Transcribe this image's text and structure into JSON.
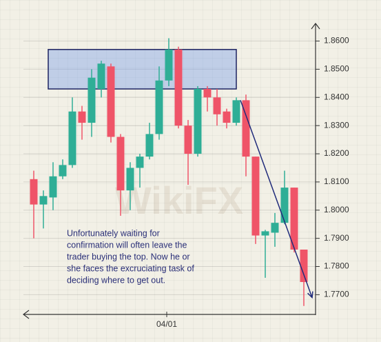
{
  "chart_data": {
    "type": "candlestick",
    "categories": [
      null,
      null,
      null,
      null,
      null,
      null,
      null,
      null,
      null,
      null,
      null,
      null,
      null,
      null,
      "04/01",
      null,
      null,
      null,
      null,
      null,
      null,
      null,
      null,
      null,
      null,
      null,
      null,
      null,
      null
    ],
    "open": [
      1.811,
      1.802,
      1.8045,
      1.812,
      1.816,
      1.835,
      1.831,
      1.843,
      1.851,
      1.826,
      1.807,
      1.815,
      1.819,
      1.827,
      1.846,
      1.857,
      1.83,
      1.82,
      1.843,
      1.84,
      1.835,
      1.831,
      1.839,
      1.819,
      1.791,
      1.792,
      1.7955,
      1.808,
      1.786
    ],
    "high": [
      1.814,
      1.807,
      1.817,
      1.818,
      1.84,
      1.837,
      1.85,
      1.853,
      1.852,
      1.827,
      1.817,
      1.82,
      1.831,
      1.851,
      1.861,
      1.858,
      1.832,
      1.844,
      1.844,
      1.843,
      1.836,
      1.84,
      1.841,
      1.819,
      1.793,
      1.799,
      1.814,
      1.808,
      1.786
    ],
    "low": [
      1.79,
      1.7935,
      1.8,
      1.811,
      1.815,
      1.825,
      1.826,
      1.84,
      1.824,
      1.798,
      1.8,
      1.808,
      1.818,
      1.825,
      1.844,
      1.829,
      1.809,
      1.819,
      1.835,
      1.83,
      1.829,
      1.83,
      1.812,
      1.788,
      1.776,
      1.787,
      1.795,
      1.785,
      1.766
    ],
    "close": [
      1.802,
      1.805,
      1.812,
      1.816,
      1.835,
      1.831,
      1.847,
      1.852,
      1.826,
      1.807,
      1.815,
      1.819,
      1.827,
      1.846,
      1.857,
      1.83,
      1.82,
      1.843,
      1.84,
      1.834,
      1.831,
      1.839,
      1.819,
      1.791,
      1.7925,
      1.7955,
      1.808,
      1.786,
      1.7745
    ],
    "up_color": "#2fae96",
    "down_color": "#ef5468",
    "ylim": [
      1.763,
      1.866
    ],
    "yticks": [
      {
        "value": 1.86,
        "label": "1.8600"
      },
      {
        "value": 1.85,
        "label": "1.8500"
      },
      {
        "value": 1.84,
        "label": "1.8400"
      },
      {
        "value": 1.83,
        "label": "1.8300"
      },
      {
        "value": 1.82,
        "label": "1.8200"
      },
      {
        "value": 1.81,
        "label": "1.8100"
      },
      {
        "value": 1.8,
        "label": "1.8000"
      },
      {
        "value": 1.79,
        "label": "1.7900"
      },
      {
        "value": 1.78,
        "label": "1.7800"
      },
      {
        "value": 1.77,
        "label": "1.7700"
      }
    ],
    "grid": true,
    "zone": [
      1.843,
      1.857
    ],
    "trend_line": [
      1.839,
      1.769
    ],
    "annotation": [
      "Unfortunately waiting for",
      "confirmation will often leave the",
      "trader buying the top.  Now he or",
      "she faces the excruciating task of",
      "deciding where to get out."
    ],
    "watermark": "WikiFX"
  }
}
